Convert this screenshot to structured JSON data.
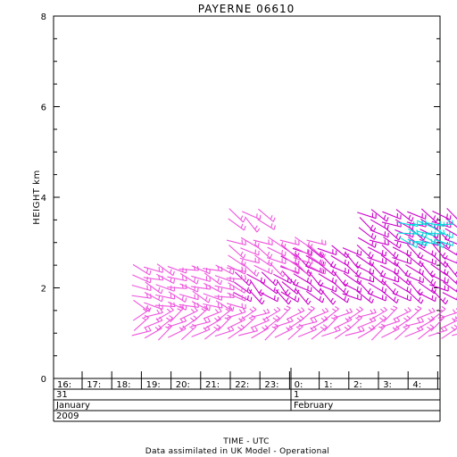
{
  "chart_data": {
    "type": "scatter",
    "title": "PAYERNE 06610",
    "ylabel": "HEIGHT km",
    "xlabel": "TIME - UTC",
    "footer": "Data assimilated in UK Model - Operational",
    "ylim": [
      0,
      8
    ],
    "yticks": [
      "0",
      "2",
      "4",
      "6",
      "8"
    ],
    "yvalues": [
      0,
      2,
      4,
      6,
      8
    ],
    "hour_ticks": [
      "16:",
      "17:",
      "18:",
      "19:",
      "20:",
      "21:",
      "22:",
      "23:",
      "0:",
      "1:",
      "2:",
      "3:",
      "4:"
    ],
    "day_labels": [
      "31",
      "1"
    ],
    "month_labels": [
      "January",
      "February"
    ],
    "year_label": "2009",
    "colors": {
      "magenta": "#cc00cc",
      "pink": "#ee55dd",
      "cyan": "#00dddd",
      "axis": "#000000"
    },
    "series": [
      {
        "color": "magenta",
        "x_start": 23.0,
        "x_end": 28.8,
        "x_step": 0.42,
        "heights": [
          1.8,
          2.0,
          2.2,
          2.4,
          2.6,
          2.8
        ],
        "angle": -35
      },
      {
        "color": "magenta",
        "x_start": 21.4,
        "x_end": 22.9,
        "x_step": 0.45,
        "heights": [
          1.8,
          2.0,
          2.2
        ],
        "angle": -40
      },
      {
        "color": "magenta",
        "x_start": 25.6,
        "x_end": 28.8,
        "x_step": 0.42,
        "heights": [
          3.0,
          3.2,
          3.4,
          3.6
        ],
        "angle": -30
      },
      {
        "color": "cyan",
        "x_start": 27.0,
        "x_end": 28.2,
        "x_step": 0.3,
        "heights": [
          3.0,
          3.2,
          3.4
        ],
        "angle": -15
      },
      {
        "color": "pink",
        "x_start": 18.0,
        "x_end": 28.8,
        "x_step": 0.4,
        "heights": [
          1.0,
          1.2,
          1.4
        ],
        "angle": 30
      },
      {
        "color": "pink",
        "x_start": 18.0,
        "x_end": 21.2,
        "x_step": 0.4,
        "heights": [
          1.6,
          1.8,
          2.0,
          2.2,
          2.4
        ],
        "angle": -20
      },
      {
        "color": "pink",
        "x_start": 21.2,
        "x_end": 24.0,
        "x_step": 0.45,
        "heights": [
          2.4,
          2.6,
          2.8,
          3.0
        ],
        "angle": -30
      },
      {
        "color": "pink",
        "x_start": 21.2,
        "x_end": 22.2,
        "x_step": 0.5,
        "heights": [
          3.4,
          3.6
        ],
        "angle": -40
      }
    ]
  }
}
